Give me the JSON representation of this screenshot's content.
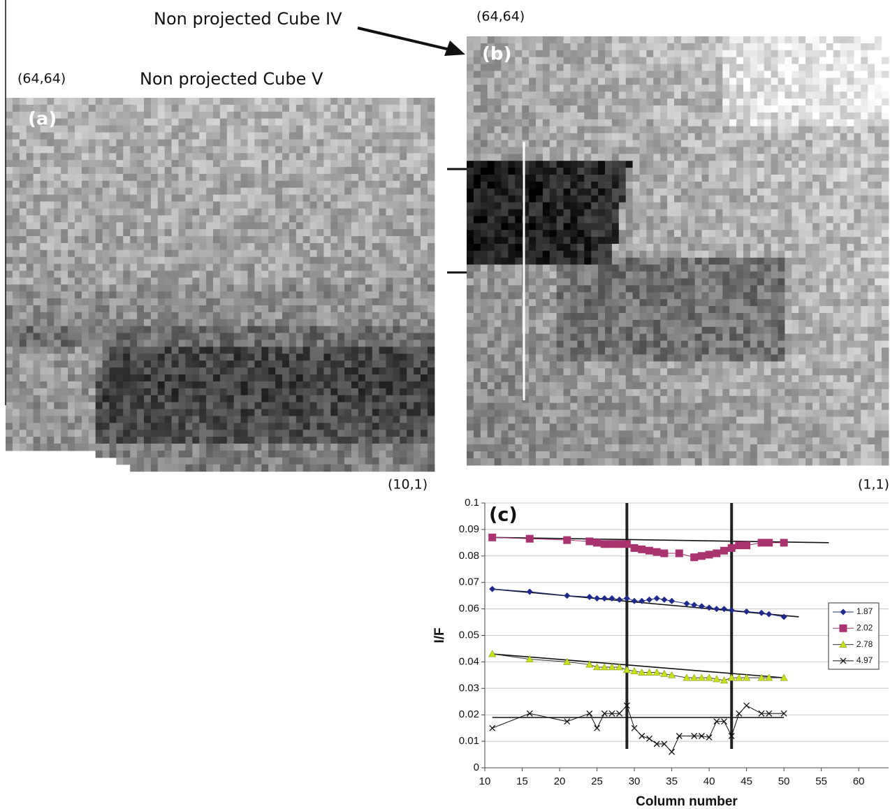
{
  "figure": {
    "cube_iv_label": "Non projected Cube IV",
    "cube_iv_corner": "(64,64)",
    "cube_v_label": "Non projected Cube V",
    "cube_v_corner": "(64,64)",
    "panel_a": "(a)",
    "panel_b": "(b)",
    "panel_a_corner": "(10,1)",
    "panel_b_corner": "(1,1)"
  },
  "chart_data": {
    "type": "line",
    "title": "(c)",
    "x_label": "Column number",
    "y_label": "I/F",
    "xlim": [
      10,
      64
    ],
    "xticks": [
      10,
      15,
      20,
      25,
      30,
      35,
      40,
      45,
      50,
      55,
      60
    ],
    "ylim": [
      0,
      0.1
    ],
    "yticks": [
      0,
      0.01,
      0.02,
      0.03,
      0.04,
      0.05,
      0.06,
      0.07,
      0.08,
      0.09,
      0.1
    ],
    "grid": true,
    "legend": "right",
    "series": [
      {
        "name": "1.87",
        "color": "#1f2a8a",
        "marker": "diamond",
        "x": [
          11,
          16,
          21,
          24,
          25,
          26,
          27,
          28,
          29,
          30,
          31,
          32,
          33,
          34,
          35,
          37,
          38,
          39,
          40,
          41,
          42,
          43,
          45,
          47,
          48,
          50
        ],
        "values": [
          0.0675,
          0.0665,
          0.065,
          0.0645,
          0.064,
          0.064,
          0.064,
          0.0635,
          0.064,
          0.063,
          0.063,
          0.0635,
          0.064,
          0.0635,
          0.063,
          0.062,
          0.0615,
          0.061,
          0.0605,
          0.06,
          0.06,
          0.0595,
          0.059,
          0.0585,
          0.058,
          0.057
        ]
      },
      {
        "name": "2.02",
        "color": "#a8336f",
        "marker": "square",
        "x": [
          11,
          16,
          21,
          24,
          25,
          26,
          27,
          28,
          29,
          30,
          31,
          32,
          33,
          34,
          36,
          38,
          39,
          40,
          41,
          42,
          43,
          44,
          45,
          47,
          48,
          50
        ],
        "values": [
          0.087,
          0.0865,
          0.086,
          0.0855,
          0.085,
          0.0845,
          0.0845,
          0.0845,
          0.0845,
          0.083,
          0.0825,
          0.082,
          0.0815,
          0.081,
          0.081,
          0.0795,
          0.08,
          0.0805,
          0.081,
          0.082,
          0.083,
          0.084,
          0.084,
          0.085,
          0.085,
          0.085
        ]
      },
      {
        "name": "2.78",
        "color": "#c6e01c",
        "marker": "triangle",
        "x": [
          11,
          16,
          21,
          24,
          25,
          26,
          27,
          28,
          29,
          30,
          31,
          32,
          33,
          34,
          35,
          37,
          38,
          39,
          40,
          41,
          42,
          43,
          44,
          45,
          47,
          48,
          50
        ],
        "values": [
          0.043,
          0.041,
          0.04,
          0.039,
          0.038,
          0.038,
          0.038,
          0.038,
          0.037,
          0.0365,
          0.036,
          0.036,
          0.036,
          0.0355,
          0.035,
          0.034,
          0.034,
          0.034,
          0.034,
          0.0335,
          0.033,
          0.034,
          0.034,
          0.034,
          0.034,
          0.034,
          0.034
        ]
      },
      {
        "name": "4.97",
        "color": "#111111",
        "marker": "x",
        "x": [
          11,
          16,
          21,
          24,
          25,
          26,
          27,
          28,
          29,
          30,
          31,
          32,
          33,
          34,
          35,
          36,
          38,
          39,
          40,
          41,
          42,
          43,
          44,
          45,
          47,
          48,
          50
        ],
        "values": [
          0.015,
          0.0205,
          0.0175,
          0.0205,
          0.015,
          0.0205,
          0.0205,
          0.0205,
          0.0235,
          0.015,
          0.012,
          0.011,
          0.009,
          0.009,
          0.006,
          0.012,
          0.012,
          0.012,
          0.0115,
          0.0175,
          0.0175,
          0.012,
          0.0205,
          0.0235,
          0.0205,
          0.0205,
          0.0205
        ]
      }
    ],
    "trend_lines": [
      {
        "x": [
          11,
          56
        ],
        "values": [
          0.087,
          0.085
        ]
      },
      {
        "x": [
          11,
          52
        ],
        "values": [
          0.0675,
          0.057
        ]
      },
      {
        "x": [
          11,
          50
        ],
        "values": [
          0.043,
          0.034
        ]
      },
      {
        "x": [
          11,
          50
        ],
        "values": [
          0.019,
          0.019
        ]
      }
    ],
    "vlines": [
      29,
      43
    ]
  }
}
